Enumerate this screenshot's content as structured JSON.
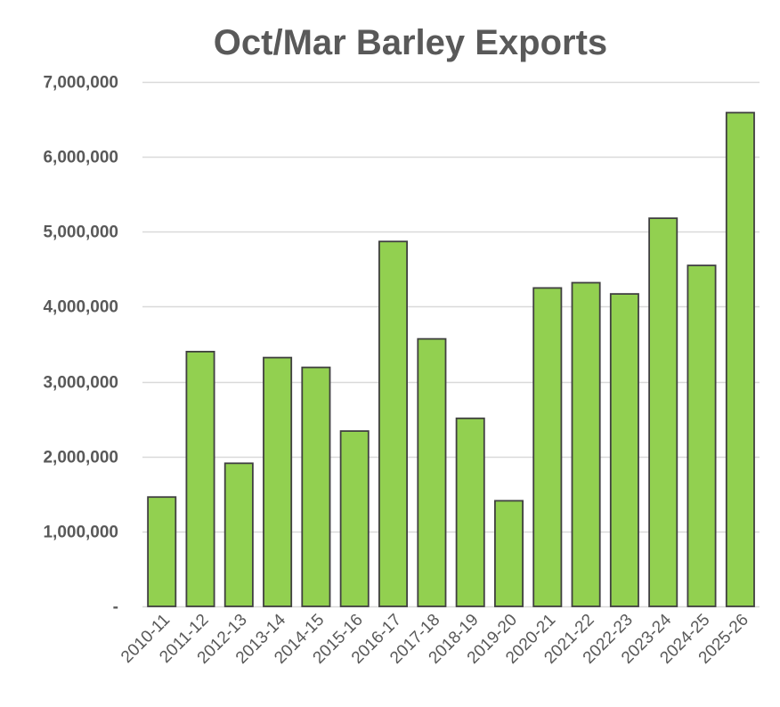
{
  "chart_data": {
    "type": "bar",
    "title": "Oct/Mar Barley Exports",
    "xlabel": "",
    "ylabel": "",
    "categories": [
      "2010-11",
      "2011-12",
      "2012-13",
      "2013-14",
      "2014-15",
      "2015-16",
      "2016-17",
      "2017-18",
      "2018-19",
      "2019-20",
      "2020-21",
      "2021-22",
      "2022-23",
      "2023-24",
      "2024-25",
      "2025-26"
    ],
    "values": [
      1460000,
      3400000,
      1910000,
      3320000,
      3190000,
      2340000,
      4870000,
      3570000,
      2510000,
      1410000,
      4250000,
      4320000,
      4170000,
      5180000,
      4550000,
      6590000
    ],
    "ylim": [
      0,
      7000000
    ],
    "y_ticks": [
      0,
      1000000,
      2000000,
      3000000,
      4000000,
      5000000,
      6000000,
      7000000
    ],
    "y_tick_labels": [
      "-",
      "1,000,000",
      "2,000,000",
      "3,000,000",
      "4,000,000",
      "5,000,000",
      "6,000,000",
      "7,000,000"
    ],
    "grid": true,
    "legend": "none",
    "bar_color": "#92d050",
    "bar_border_color": "#404040",
    "grid_color": "#d9d9d9",
    "text_color": "#595959"
  }
}
